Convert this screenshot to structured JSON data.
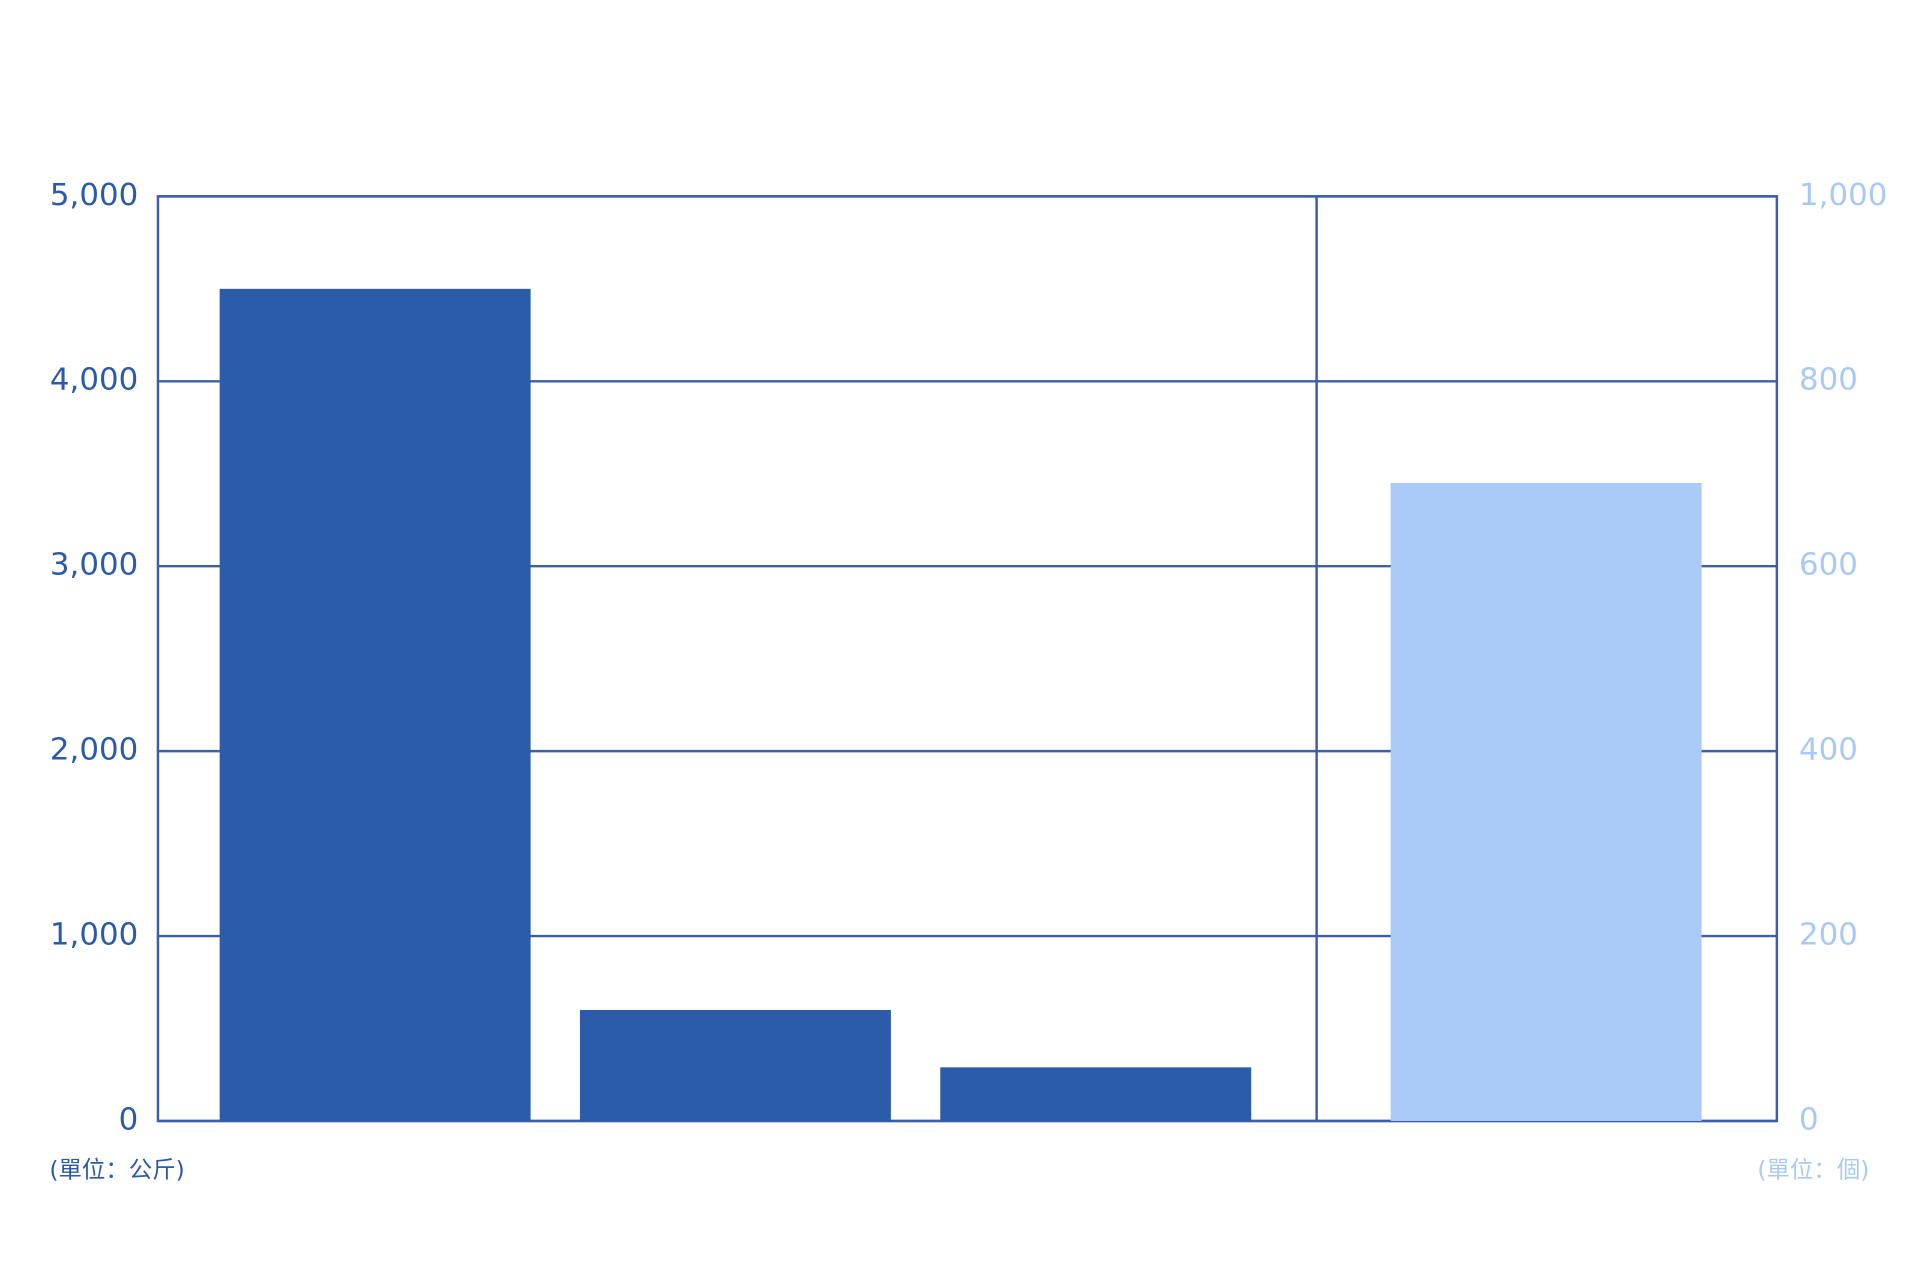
{
  "chart_data": {
    "type": "bar",
    "categories": [
      null,
      null,
      null,
      null
    ],
    "series": [
      {
        "color": "#2a5caa",
        "values": [
          4500,
          600,
          290,
          null
        ]
      },
      {
        "color": "#aacbf8",
        "values": [
          null,
          null,
          null,
          690
        ],
        "axis": "y2"
      }
    ],
    "ylim": [
      0,
      5000
    ],
    "yticks": [
      0,
      {
        "value": 1000,
        "label": "1,000"
      },
      {
        "value": 2000,
        "label": "2,000"
      },
      {
        "value": 3000,
        "label": "3,000"
      },
      {
        "value": 4000,
        "label": "4,000"
      },
      {
        "value": 5000,
        "label": "5,000"
      }
    ],
    "y2lim": [
      0,
      1000
    ],
    "y2ticks": [
      0,
      200,
      400,
      600,
      800,
      {
        "value": 1000,
        "label": "1,000"
      }
    ],
    "y_unit_label": "(單位：公斤)",
    "y2_unit_label": "(單位：個)",
    "grid": true
  }
}
